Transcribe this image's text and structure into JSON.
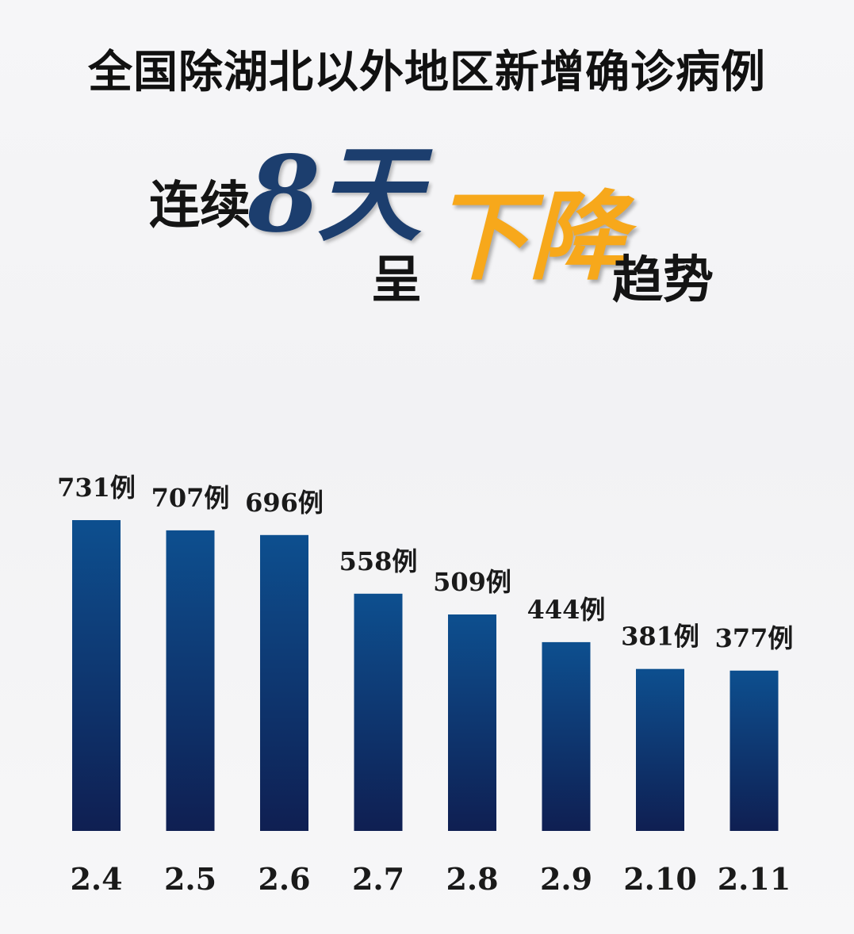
{
  "title": "全国除湖北以外地区新增确诊病例",
  "headline": {
    "part1": "连续",
    "days": "8天",
    "part2": "呈",
    "emphasis": "下降",
    "part3": "趋势"
  },
  "colors": {
    "bar_top": "#0d4f8f",
    "bar_bottom": "#0f1f52",
    "accent": "#f7a81b",
    "days_color": "#1c3e6e"
  },
  "chart_data": {
    "type": "bar",
    "categories": [
      "2.4",
      "2.5",
      "2.6",
      "2.7",
      "2.8",
      "2.9",
      "2.10",
      "2.11"
    ],
    "values": [
      731,
      707,
      696,
      558,
      509,
      444,
      381,
      377
    ],
    "data_labels": [
      "731例",
      "707例",
      "696例",
      "558例",
      "509例",
      "444例",
      "381例",
      "377例"
    ],
    "title": "全国除湖北以外地区新增确诊病例",
    "xlabel": "",
    "ylabel": "",
    "grid": false,
    "legend": "none"
  }
}
